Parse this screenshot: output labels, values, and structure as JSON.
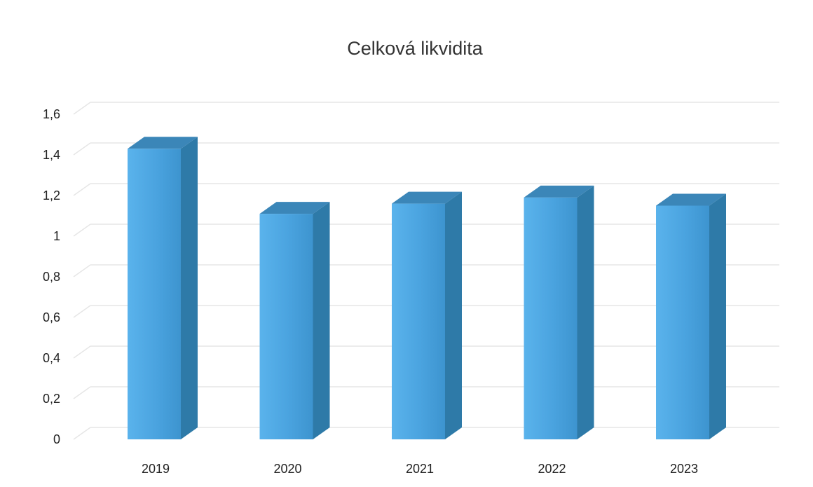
{
  "chart_data": {
    "type": "bar",
    "style": "3d-column",
    "title": "Celková likvidita",
    "xlabel": "",
    "ylabel": "",
    "categories": [
      "2019",
      "2020",
      "2021",
      "2022",
      "2023"
    ],
    "series": [
      {
        "values": [
          1.43,
          1.11,
          1.16,
          1.19,
          1.15
        ]
      }
    ],
    "ylim": [
      0,
      1.6
    ],
    "yticks": [
      0,
      0.2,
      0.4,
      0.6,
      0.8,
      1,
      1.2,
      1.4,
      1.6
    ],
    "ytick_labels": [
      "0",
      "0,2",
      "0,4",
      "0,6",
      "0,8",
      "1",
      "1,2",
      "1,4",
      "1,6"
    ],
    "grid": true,
    "legend": "none",
    "colors": {
      "bar_front": "#4aa3df",
      "bar_side": "#2e7aa8",
      "bar_top": "#3b86b8",
      "grid": "#e6e6e6"
    }
  }
}
